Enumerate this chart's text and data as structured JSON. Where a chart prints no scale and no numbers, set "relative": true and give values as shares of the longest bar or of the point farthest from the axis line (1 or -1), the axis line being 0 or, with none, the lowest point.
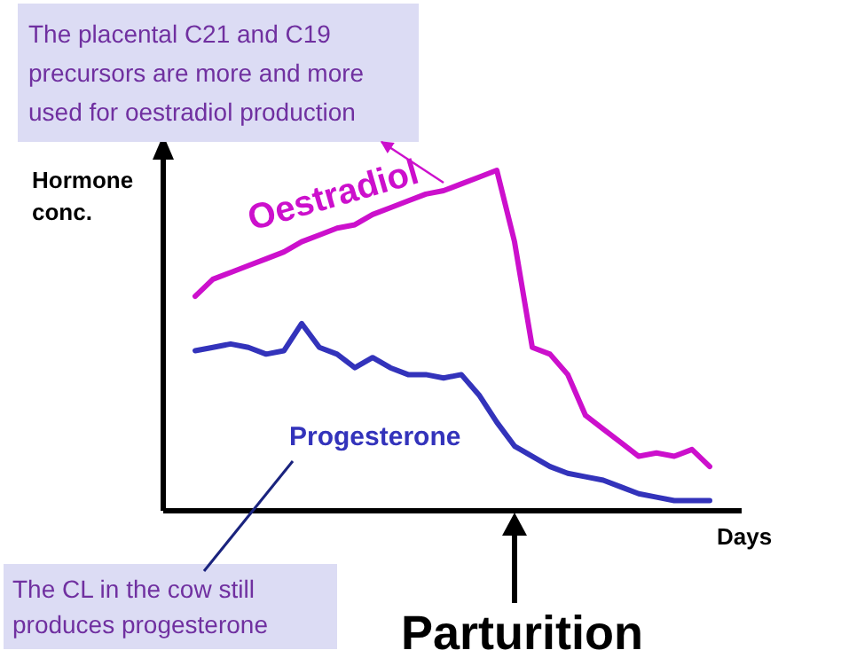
{
  "chart_data": {
    "type": "line",
    "relative": true,
    "ylabel": "Hormone conc.",
    "xlabel": "Days",
    "legend": false,
    "grid": false,
    "line_style": "solid",
    "marker": "none",
    "categories": [
      null,
      null,
      null,
      null,
      null,
      null,
      null,
      null,
      null,
      null,
      null,
      null,
      null,
      null,
      null,
      null,
      null,
      null,
      null,
      null,
      null,
      null,
      null,
      null,
      null,
      null,
      null,
      null,
      null,
      null
    ],
    "series": [
      {
        "name": "Oestradiol",
        "color": "#cc10cc",
        "values": [
          0.63,
          0.68,
          0.7,
          0.72,
          0.74,
          0.76,
          0.79,
          0.81,
          0.83,
          0.84,
          0.87,
          0.89,
          0.91,
          0.93,
          0.94,
          0.96,
          0.98,
          1,
          0.79,
          0.48,
          0.46,
          0.4,
          0.28,
          0.24,
          0.2,
          0.16,
          0.17,
          0.16,
          0.18,
          0.13
        ]
      },
      {
        "name": "Progesterone",
        "color": "#3333bb",
        "values": [
          0.47,
          0.48,
          0.49,
          0.48,
          0.46,
          0.47,
          0.55,
          0.48,
          0.46,
          0.42,
          0.45,
          0.42,
          0.4,
          0.4,
          0.39,
          0.4,
          0.34,
          0.26,
          0.19,
          0.16,
          0.13,
          0.11,
          0.1,
          0.09,
          0.07,
          0.05,
          0.04,
          0.03,
          0.03,
          0.03
        ]
      }
    ],
    "annotations": [
      "The placental C21 and C19 precursors are more and more used for oestradiol production",
      "The CL in the cow still produces progesterone",
      "Parturition"
    ]
  }
}
